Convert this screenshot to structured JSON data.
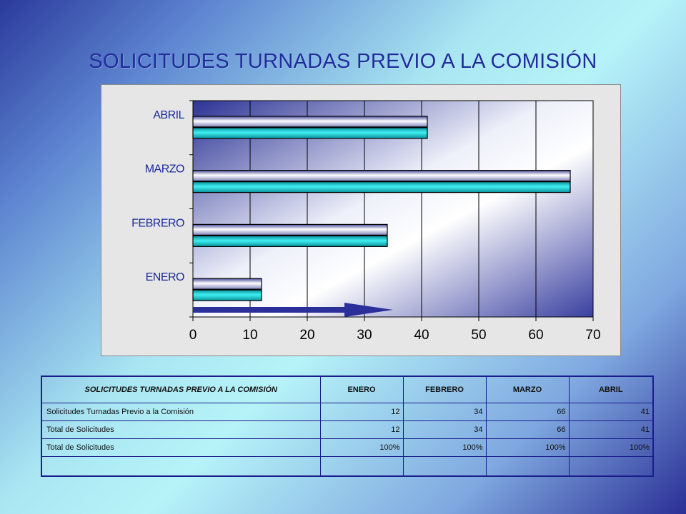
{
  "title": "SOLICITUDES TURNADAS PREVIO A LA COMISIÓN",
  "chart_data": {
    "type": "bar",
    "orientation": "horizontal",
    "categories": [
      "ENERO",
      "FEBRERO",
      "MARZO",
      "ABRIL"
    ],
    "series": [
      {
        "values": [
          12,
          34,
          66,
          41
        ],
        "color": "#2adfe4"
      },
      {
        "values": [
          12,
          34,
          66,
          41
        ],
        "color": "#ffffff"
      }
    ],
    "xlim": [
      0,
      70
    ],
    "xticks": [
      0,
      10,
      20,
      30,
      40,
      50,
      60,
      70
    ],
    "grid": true,
    "legend": "none",
    "arrow_value": 35
  },
  "table": {
    "headers": [
      "SOLICITUDES TURNADAS PREVIO A LA COMISIÓN",
      "ENERO",
      "FEBRERO",
      "MARZO",
      "ABRIL"
    ],
    "rows": [
      [
        "Solicitudes Turnadas Previo a la Comisión",
        "12",
        "34",
        "66",
        "41"
      ],
      [
        "Total de Solicitudes",
        "12",
        "34",
        "66",
        "41"
      ],
      [
        "Total de Solicitudes",
        "100%",
        "100%",
        "100%",
        "100%"
      ],
      [
        "",
        "",
        "",
        "",
        ""
      ]
    ]
  },
  "colors": {
    "title": "#1f2d9c",
    "bar_cyan": "#2adfe4",
    "arrow": "#2b2f9a",
    "table_border": "#1a1e8a"
  }
}
